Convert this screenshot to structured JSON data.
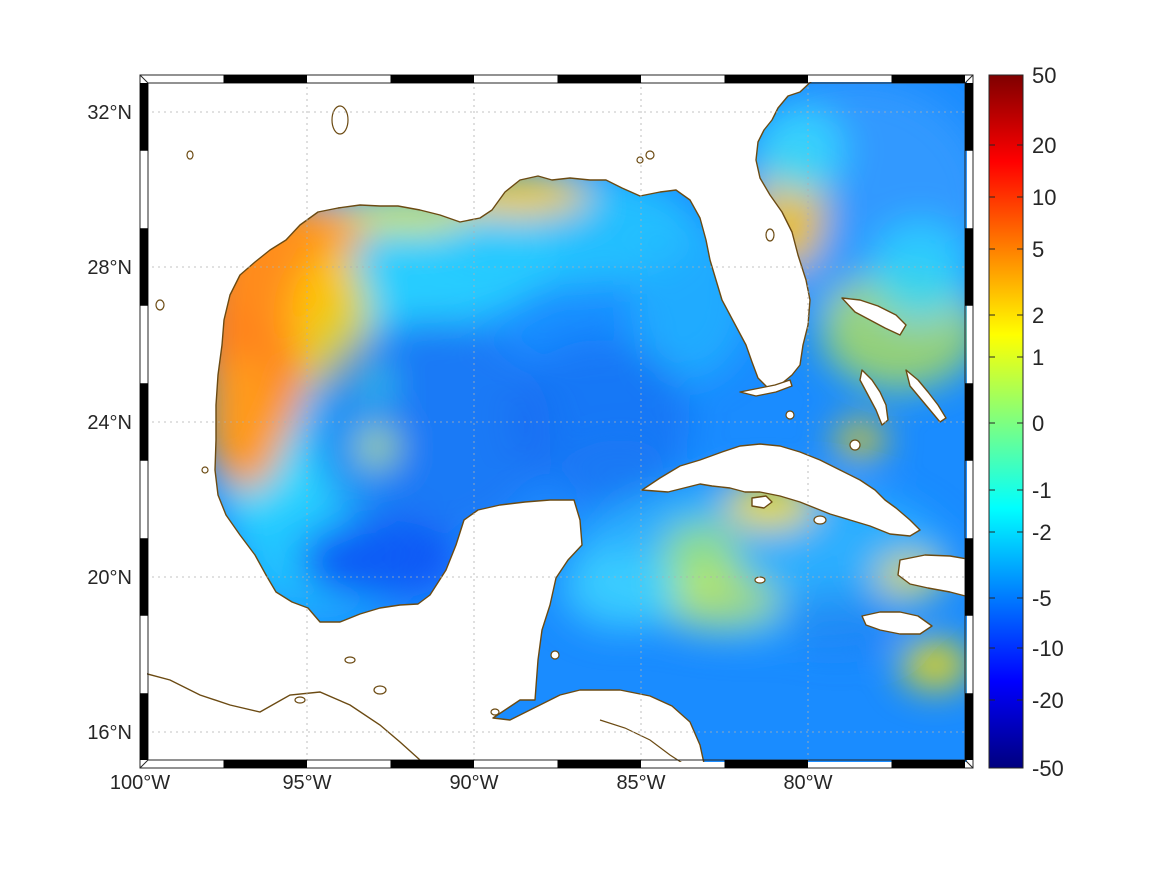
{
  "map": {
    "lon_range": [
      -100,
      -75
    ],
    "lat_range": [
      14.5,
      33
    ],
    "lon_tick_labels": [
      "100°W",
      "95°W",
      "90°W",
      "85°W",
      "80°W"
    ],
    "lon_tick_values": [
      -100,
      -95,
      -90,
      -85,
      -80
    ],
    "lat_tick_labels": [
      "32°N",
      "28°N",
      "24°N",
      "20°N",
      "16°N"
    ],
    "lat_tick_values": [
      32,
      28,
      24,
      20,
      16
    ],
    "grid": true,
    "coastline_color": "#6b4a12",
    "frame_style": "black-white alternating border"
  },
  "colorbar": {
    "placement": "right",
    "tick_labels": [
      "50",
      "20",
      "10",
      "5",
      "2",
      "1",
      "0",
      "-1",
      "-2",
      "-5",
      "-10",
      "-20",
      "-50"
    ],
    "colormap": "jet",
    "colors": [
      "#7f0000",
      "#ff0000",
      "#ff7f00",
      "#ffff00",
      "#7fff7f",
      "#00ffff",
      "#007fff",
      "#0000ff",
      "#00007f"
    ]
  },
  "field": {
    "description_colors": {
      "western_gulf": "#ff7f1a",
      "northern_shelf": "#ffcc00",
      "deep_gulf": "#1a8cff",
      "bay_of_campeche": "#0050ff",
      "caribbean": "#2ab0ff",
      "atlantic": "#3a9cff"
    }
  }
}
